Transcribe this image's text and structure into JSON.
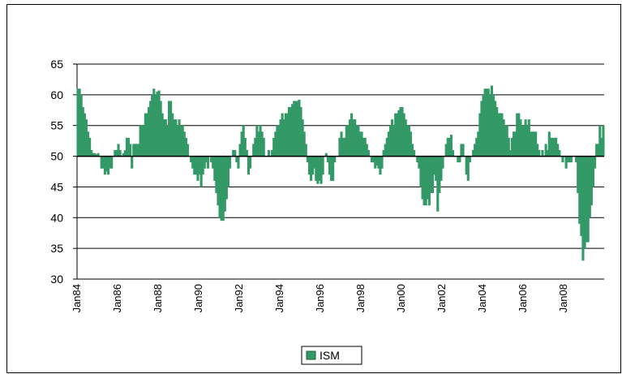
{
  "chart_data": {
    "type": "bar",
    "base": 50,
    "grid": true,
    "color": "#339966",
    "series": [
      {
        "name": "ISM",
        "color": "#339966",
        "values": [
          61,
          61,
          60,
          58,
          57,
          56,
          54,
          53,
          51,
          50.5,
          50.5,
          50.3,
          50.5,
          50,
          48,
          48,
          47,
          47.5,
          47,
          48,
          48,
          50,
          51,
          51,
          52,
          51,
          50,
          50.5,
          51,
          53,
          53,
          52,
          48,
          52,
          52,
          52,
          52,
          55,
          55,
          55,
          57,
          57,
          58,
          59,
          60,
          61,
          60,
          60.5,
          60.7,
          59,
          57,
          56,
          56,
          55,
          59,
          59,
          57,
          56,
          56,
          55,
          56,
          55,
          55,
          54,
          53,
          52,
          50,
          49,
          48,
          47,
          47,
          46,
          47,
          45,
          47,
          48,
          49,
          48,
          50,
          49,
          48,
          46,
          44,
          42,
          40,
          39.5,
          39.5,
          41,
          43,
          45,
          48,
          50,
          51,
          51,
          49,
          48,
          52,
          54,
          55,
          53,
          51,
          47,
          48,
          50,
          52,
          53,
          55,
          54,
          55,
          54,
          53,
          50,
          50,
          51,
          50,
          51,
          53,
          54,
          55,
          55,
          56,
          57,
          56,
          57,
          57,
          58,
          58,
          58.5,
          59,
          59,
          59,
          59.2,
          58,
          56,
          54,
          52,
          49,
          47,
          46,
          47,
          48,
          46,
          45.5,
          46,
          45.5,
          47,
          50,
          50.5,
          49,
          47,
          46,
          46,
          49,
          50,
          50,
          53,
          54,
          53,
          53,
          55,
          55,
          56,
          57,
          56,
          56,
          55,
          55,
          54,
          54,
          53,
          53,
          52,
          51,
          50,
          49,
          49,
          48,
          48.5,
          48,
          47,
          48,
          51,
          52,
          53,
          54,
          55,
          56,
          55,
          57,
          57,
          57.5,
          58,
          58,
          57,
          56,
          55,
          55,
          54,
          52,
          51,
          50,
          49,
          48,
          45,
          43,
          42,
          42,
          43,
          42,
          44,
          44,
          47,
          46,
          41,
          44,
          46,
          48,
          50,
          52,
          53,
          53,
          53.5,
          51,
          50,
          50,
          49,
          49,
          52,
          52,
          50,
          47,
          46,
          49,
          50,
          51,
          52,
          53,
          54,
          57,
          59,
          60,
          61,
          61,
          61,
          60,
          61.5,
          60,
          59,
          58,
          57,
          57,
          57,
          56,
          55,
          55,
          53,
          51,
          53,
          54,
          54,
          57,
          57,
          56,
          55,
          55,
          56,
          55,
          56,
          54,
          54,
          54,
          54,
          52,
          51,
          50,
          51,
          50,
          52,
          51,
          54,
          53,
          53,
          53,
          53,
          52,
          51,
          50,
          49,
          50,
          48,
          49,
          49,
          49,
          50,
          50,
          49,
          44,
          39,
          37,
          33,
          35,
          36,
          36,
          40,
          42,
          45,
          48,
          52,
          52,
          55,
          53,
          55
        ]
      }
    ],
    "categories": [
      "Jan84",
      null,
      null,
      null,
      null,
      null,
      null,
      null,
      null,
      null,
      null,
      null,
      null,
      null,
      null,
      null,
      null,
      null,
      null,
      null,
      null,
      null,
      null,
      null,
      "Jan86",
      null,
      null,
      null,
      null,
      null,
      null,
      null,
      null,
      null,
      null,
      null,
      null,
      null,
      null,
      null,
      null,
      null,
      null,
      null,
      null,
      null,
      null,
      null,
      "Jan88",
      null,
      null,
      null,
      null,
      null,
      null,
      null,
      null,
      null,
      null,
      null,
      null,
      null,
      null,
      null,
      null,
      null,
      null,
      null,
      null,
      null,
      null,
      null,
      "Jan90",
      null,
      null,
      null,
      null,
      null,
      null,
      null,
      null,
      null,
      null,
      null,
      null,
      null,
      null,
      null,
      null,
      null,
      null,
      null,
      null,
      null,
      null,
      null,
      "Jan92",
      null,
      null,
      null,
      null,
      null,
      null,
      null,
      null,
      null,
      null,
      null,
      null,
      null,
      null,
      null,
      null,
      null,
      null,
      null,
      null,
      null,
      null,
      null,
      "Jan94",
      null,
      null,
      null,
      null,
      null,
      null,
      null,
      null,
      null,
      null,
      null,
      null,
      null,
      null,
      null,
      null,
      null,
      null,
      null,
      null,
      null,
      null,
      null,
      "Jan96",
      null,
      null,
      null,
      null,
      null,
      null,
      null,
      null,
      null,
      null,
      null,
      null,
      null,
      null,
      null,
      null,
      null,
      null,
      null,
      null,
      null,
      null,
      null,
      "Jan98",
      null,
      null,
      null,
      null,
      null,
      null,
      null,
      null,
      null,
      null,
      null,
      null,
      null,
      null,
      null,
      null,
      null,
      null,
      null,
      null,
      null,
      null,
      null,
      "Jan00",
      null,
      null,
      null,
      null,
      null,
      null,
      null,
      null,
      null,
      null,
      null,
      null,
      null,
      null,
      null,
      null,
      null,
      null,
      null,
      null,
      null,
      null,
      null,
      "Jan02",
      null,
      null,
      null,
      null,
      null,
      null,
      null,
      null,
      null,
      null,
      null,
      null,
      null,
      null,
      null,
      null,
      null,
      null,
      null,
      null,
      null,
      null,
      null,
      "Jan04",
      null,
      null,
      null,
      null,
      null,
      null,
      null,
      null,
      null,
      null,
      null,
      null,
      null,
      null,
      null,
      null,
      null,
      null,
      null,
      null,
      null,
      null,
      null,
      "Jan06",
      null,
      null,
      null,
      null,
      null,
      null,
      null,
      null,
      null,
      null,
      null,
      null,
      null,
      null,
      null,
      null,
      null,
      null,
      null,
      null,
      null,
      null,
      null,
      "Jan08",
      null,
      null,
      null,
      null,
      null,
      null,
      null,
      null,
      null,
      null,
      null,
      null,
      null,
      null,
      null,
      null,
      null,
      null,
      null,
      null,
      null,
      null,
      null
    ],
    "ylim": [
      30,
      65
    ],
    "yticks": [
      30,
      35,
      40,
      45,
      50,
      55,
      60,
      65
    ]
  }
}
